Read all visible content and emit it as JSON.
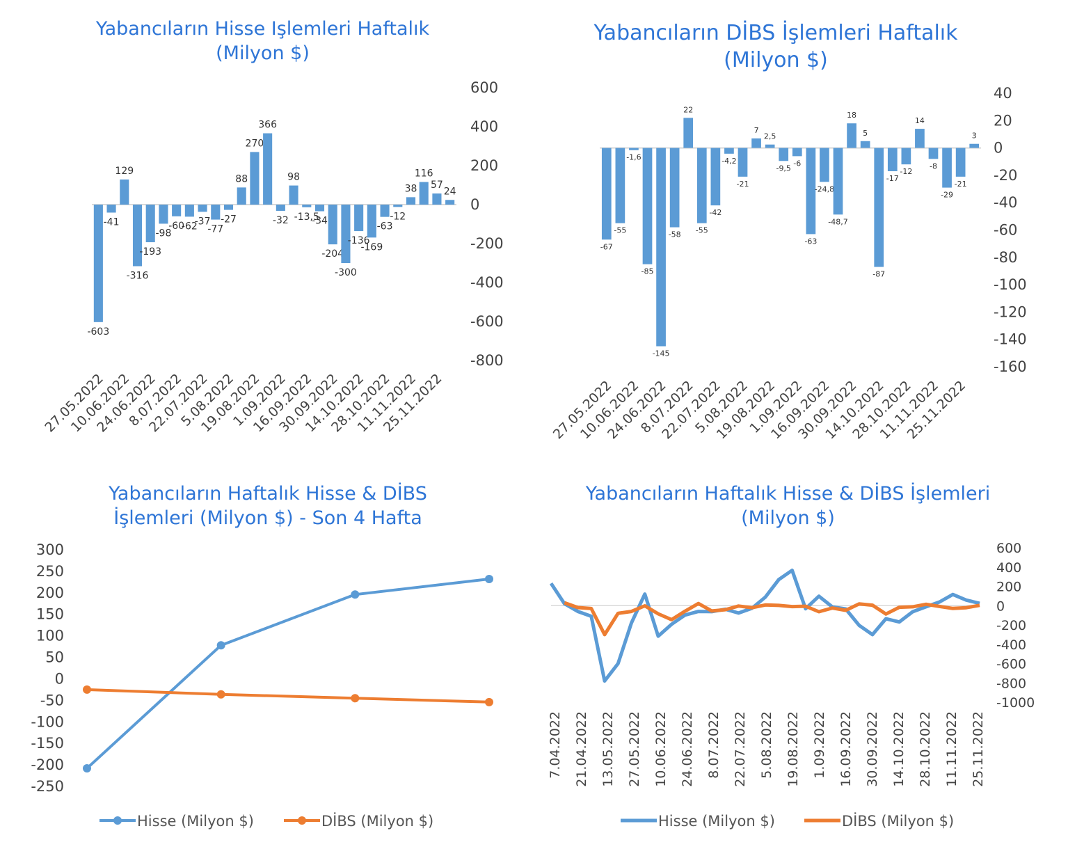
{
  "colors": {
    "title": "#2E75D6",
    "bar": "#5B9BD5",
    "hisse": "#5B9BD5",
    "dibs": "#ED7D31",
    "axis": "#D9D9D9"
  },
  "chart_data": [
    {
      "type": "bar",
      "title_line1": "Yabancıların Hisse Işlemleri Haftalık",
      "title_line2": "(Milyon $)",
      "ylim": [
        -800,
        600
      ],
      "yticks": [
        "600",
        "400",
        "200",
        "0",
        "-200",
        "-400",
        "-600",
        "-800"
      ],
      "ytick_values": [
        600,
        400,
        200,
        0,
        -200,
        -400,
        -600,
        -800
      ],
      "values": [
        -603,
        -41,
        129,
        -316,
        -193,
        -98,
        -60,
        -62,
        -37,
        -77,
        -27,
        88,
        270,
        366,
        -32,
        98,
        -13.5,
        -34,
        -204,
        -300,
        -136,
        -169,
        -63,
        -12,
        38,
        116,
        57,
        24
      ],
      "labels": [
        "-603",
        "-41",
        "129",
        "-316",
        "-193",
        "-98",
        "-60",
        "-62",
        "-37",
        "-77",
        "-27",
        "88",
        "270",
        "366",
        "-32",
        "98",
        "-13,5",
        "-34",
        "-204",
        "-300",
        "-136",
        "-169",
        "-63",
        "-12",
        "38",
        "116",
        "57",
        "24"
      ],
      "xticks": [
        "27.05.2022",
        "10.06.2022",
        "24.06.2022",
        "8.07.2022",
        "22.07.2022",
        "5.08.2022",
        "19.08.2022",
        "1.09.2022",
        "16.09.2022",
        "30.09.2022",
        "14.10.2022",
        "28.10.2022",
        "11.11.2022",
        "25.11.2022"
      ]
    },
    {
      "type": "bar",
      "title_line1": "Yabancıların  DİBS İşlemleri Haftalık",
      "title_line2": "(Milyon $)",
      "ylim": [
        -160,
        40
      ],
      "yticks": [
        "40",
        "20",
        "0",
        "-20",
        "-40",
        "-60",
        "-80",
        "-100",
        "-120",
        "-140",
        "-160"
      ],
      "ytick_values": [
        40,
        20,
        0,
        -20,
        -40,
        -60,
        -80,
        -100,
        -120,
        -140,
        -160
      ],
      "values": [
        -67,
        -55,
        -1.6,
        -85,
        -145,
        -58,
        22,
        -55,
        -42,
        -4.2,
        -21,
        7,
        2.5,
        -9.5,
        -6,
        -63,
        -24.8,
        -48.7,
        18,
        5,
        -87,
        -17,
        -12,
        14,
        -8,
        -29,
        -21,
        3
      ],
      "labels": [
        "-67",
        "-55",
        "-1,6",
        "-85",
        "-145",
        "-58",
        "22",
        "-55",
        "-42",
        "-4,2",
        "-21",
        "7",
        "2,5",
        "-9,5",
        "-6",
        "-63",
        "-24,8",
        "-48,7",
        "18",
        "5",
        "-87",
        "-17",
        "-12",
        "14",
        "-8",
        "-29",
        "-21",
        "3"
      ],
      "xticks": [
        "27.05.2022",
        "10.06.2022",
        "24.06.2022",
        "8.07.2022",
        "22.07.2022",
        "5.08.2022",
        "19.08.2022",
        "1.09.2022",
        "16.09.2022",
        "30.09.2022",
        "14.10.2022",
        "28.10.2022",
        "11.11.2022",
        "25.11.2022"
      ]
    },
    {
      "type": "line",
      "title_line1": "Yabancıların  Haftalık  Hisse & DİBS",
      "title_line2": "İşlemleri  (Milyon $) - Son 4 Hafta",
      "ylim": [
        -250,
        300
      ],
      "yticks": [
        "300",
        "250",
        "200",
        "150",
        "100",
        "50",
        "0",
        "-50",
        "-100",
        "-150",
        "-200",
        "-250"
      ],
      "ytick_values": [
        300,
        250,
        200,
        150,
        100,
        50,
        0,
        -50,
        -100,
        -150,
        -200,
        -250
      ],
      "series": [
        {
          "name": "Hisse (Milyon $)",
          "values": [
            -208,
            78,
            196,
            232
          ]
        },
        {
          "name": "DİBS (Milyon $)",
          "values": [
            -25,
            -36,
            -45,
            -54
          ]
        }
      ]
    },
    {
      "type": "line",
      "title_line1": "Yabancıların Haftalık Hisse & DİBS İşlemleri",
      "title_line2": "(Milyon $)",
      "ylim": [
        -1000,
        600
      ],
      "yticks": [
        "600",
        "400",
        "200",
        "0",
        "-200",
        "-400",
        "-600",
        "-800",
        "-1000"
      ],
      "ytick_values": [
        600,
        400,
        200,
        0,
        -200,
        -400,
        -600,
        -800,
        -1000
      ],
      "xticks": [
        "7.04.2022",
        "21.04.2022",
        "13.05.2022",
        "27.05.2022",
        "10.06.2022",
        "24.06.2022",
        "8.07.2022",
        "22.07.2022",
        "5.08.2022",
        "19.08.2022",
        "1.09.2022",
        "16.09.2022",
        "30.09.2022",
        "14.10.2022",
        "28.10.2022",
        "11.11.2022",
        "25.11.2022"
      ],
      "series": [
        {
          "name": "Hisse (Milyon $)",
          "values": [
            230,
            20,
            -60,
            -110,
            -780,
            -600,
            -180,
            120,
            -316,
            -193,
            -98,
            -60,
            -62,
            -37,
            -77,
            -27,
            88,
            270,
            366,
            -32,
            98,
            -13,
            -34,
            -204,
            -300,
            -136,
            -169,
            -63,
            -12,
            38,
            116,
            57,
            24
          ]
        },
        {
          "name": "DİBS (Milyon $)",
          "values": [
            null,
            30,
            -20,
            -30,
            -300,
            -80,
            -60,
            -1.6,
            -85,
            -145,
            -58,
            22,
            -55,
            -42,
            -4.2,
            -21,
            7,
            2.5,
            -9.5,
            -6,
            -63,
            -24.8,
            -48.7,
            18,
            5,
            -87,
            -17,
            -12,
            14,
            -8,
            -29,
            -21,
            3
          ]
        }
      ]
    }
  ]
}
